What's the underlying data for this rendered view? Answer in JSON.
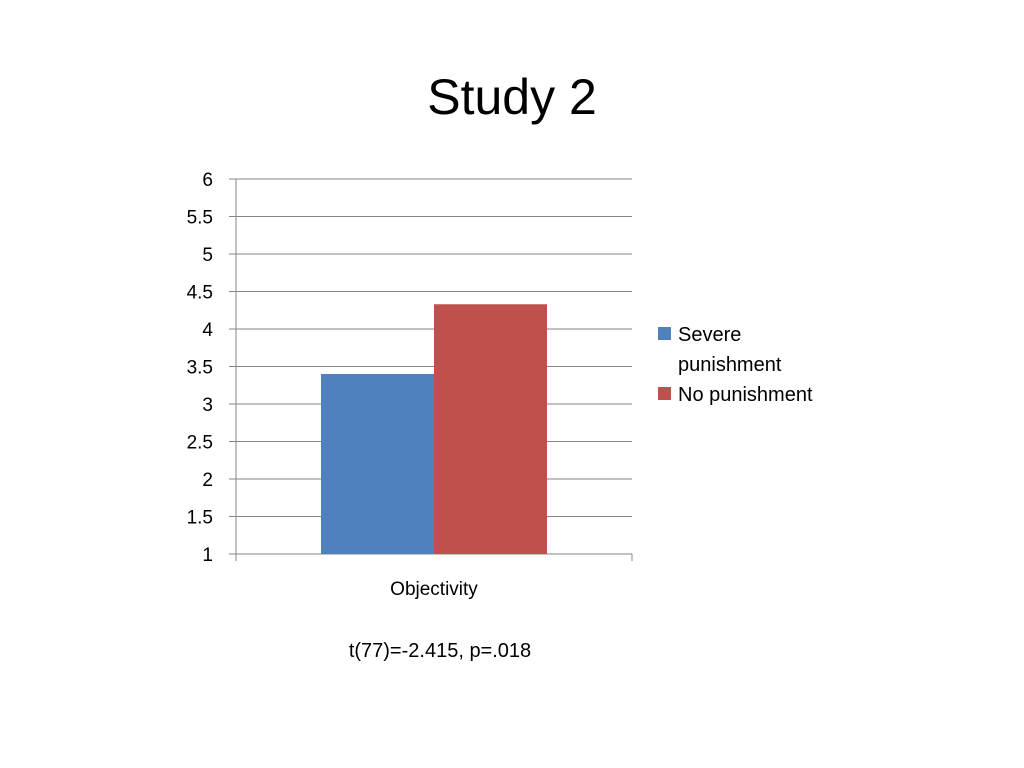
{
  "slide": {
    "title": "Study 2",
    "annotation": "t(77)=-2.415, p=.018"
  },
  "chart_data": {
    "type": "bar",
    "categories": [
      "Objectivity"
    ],
    "series": [
      {
        "name": "Severe punishment",
        "values": [
          3.4
        ],
        "color": "#4F81BD"
      },
      {
        "name": "No punishment",
        "values": [
          4.33
        ],
        "color": "#C0504D"
      }
    ],
    "ylim": [
      1,
      6
    ],
    "yticks": [
      "1",
      "1.5",
      "2",
      "2.5",
      "3",
      "3.5",
      "4",
      "4.5",
      "5",
      "5.5",
      "6"
    ],
    "grid": true,
    "legend_position": "right",
    "xlabel": "",
    "ylabel": ""
  }
}
